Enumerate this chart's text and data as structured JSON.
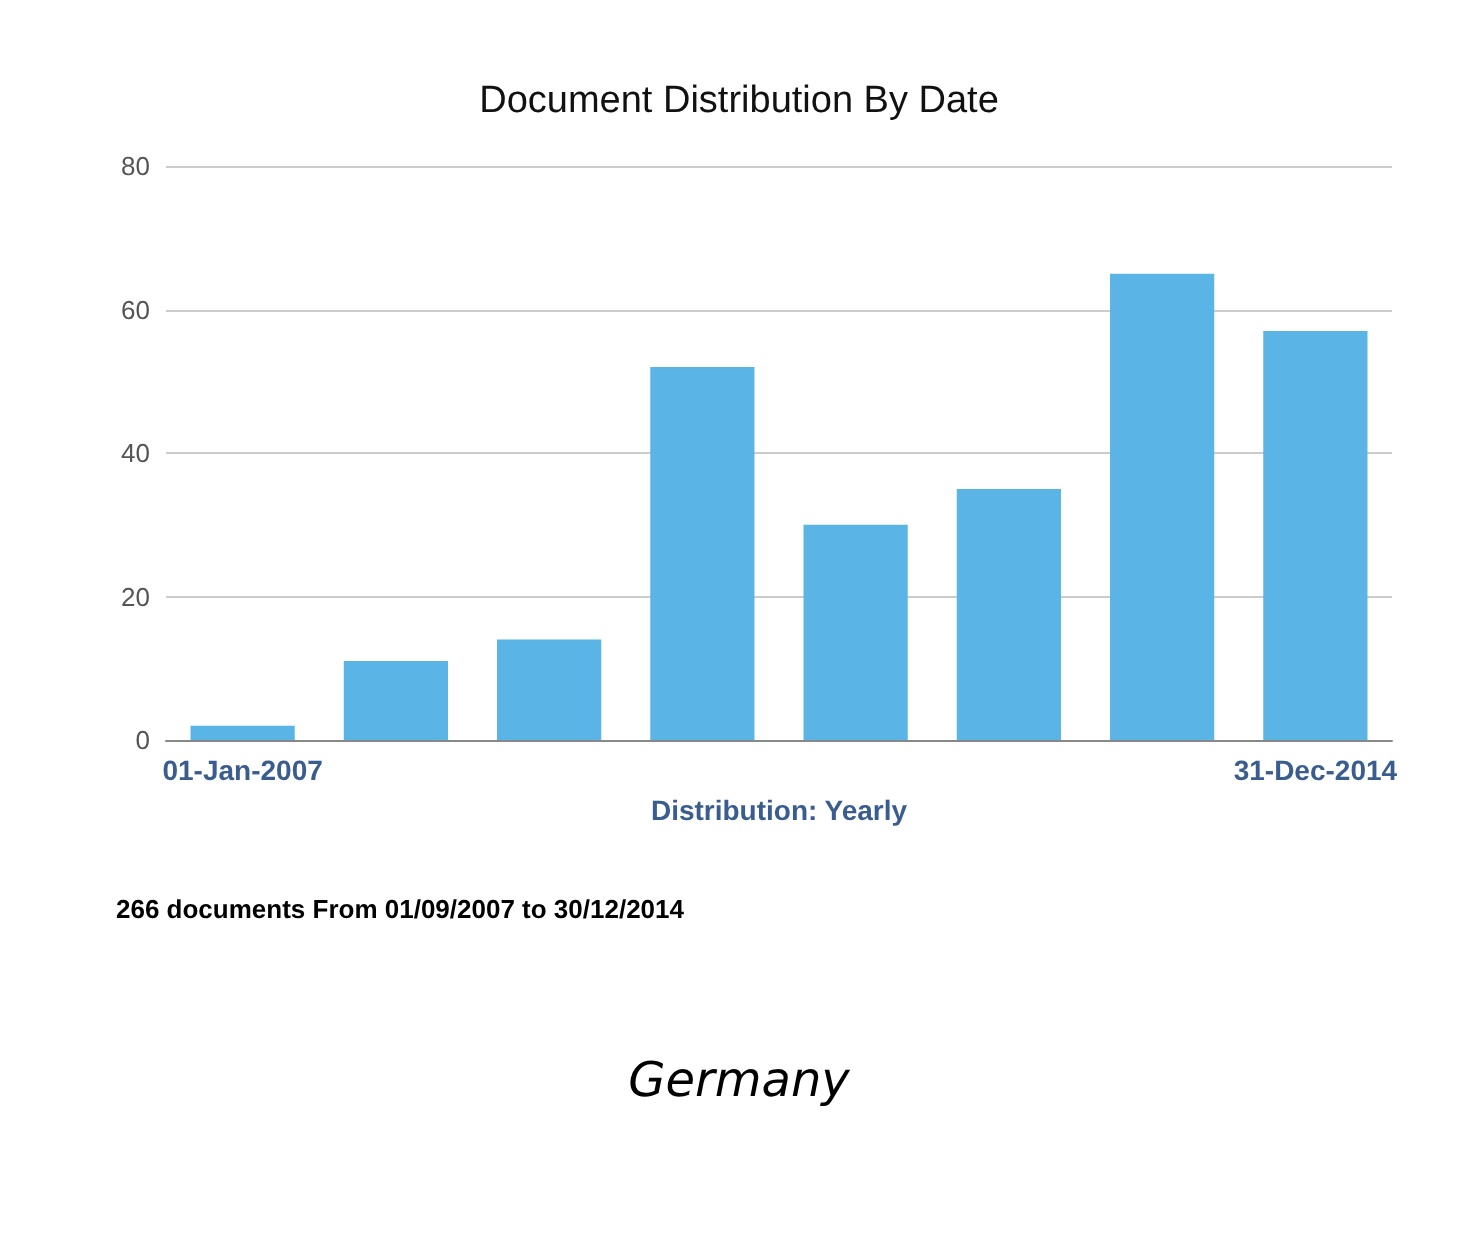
{
  "chart_data": {
    "type": "bar",
    "title": "Document Distribution By Date",
    "xlabel": "Distribution: Yearly",
    "categories": [
      "01-Jan-2007",
      null,
      null,
      null,
      null,
      null,
      null,
      "31-Dec-2014"
    ],
    "values": [
      2,
      11,
      14,
      52,
      30,
      35,
      65,
      57
    ],
    "color": "#5ab4e5",
    "ylim": [
      0,
      80
    ],
    "yticks": [
      0,
      20,
      40,
      60,
      80
    ],
    "grid": "y",
    "annotations": [
      "266 documents From 01/09/2007 to 30/12/2014",
      "Germany"
    ]
  }
}
